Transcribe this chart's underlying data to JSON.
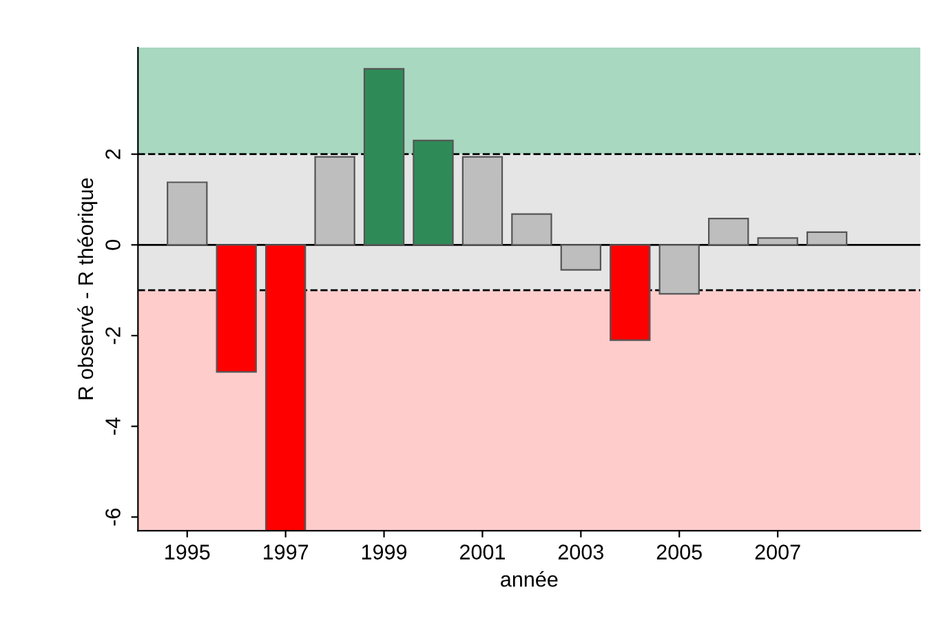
{
  "chart_data": {
    "type": "bar",
    "xlabel": "année",
    "ylabel": "R observé - R théorique",
    "x": [
      1995,
      1996,
      1997,
      1998,
      1999,
      2000,
      2001,
      2002,
      2003,
      2004,
      2005,
      2006,
      2007,
      2008
    ],
    "values": [
      1.38,
      -2.8,
      -6.3,
      1.94,
      3.88,
      2.3,
      1.94,
      0.68,
      -0.55,
      -2.1,
      -1.08,
      0.58,
      0.15,
      0.28
    ],
    "colors": [
      "#bebebe",
      "#ff0000",
      "#ff0000",
      "#bebebe",
      "#2e8b57",
      "#2e8b57",
      "#bebebe",
      "#bebebe",
      "#bebebe",
      "#ff0000",
      "#bebebe",
      "#bebebe",
      "#bebebe",
      "#bebebe"
    ],
    "xlim": [
      1994,
      2009.9
    ],
    "ylim": [
      -6.3,
      4.35
    ],
    "xticks": [
      1995,
      1997,
      1999,
      2001,
      2003,
      2005,
      2007
    ],
    "yticks": [
      -6,
      -4,
      -2,
      0,
      2
    ],
    "bands": [
      {
        "axis": "y",
        "from": 2,
        "to": 4.35,
        "color": "#a8d8c0"
      },
      {
        "axis": "y",
        "from": -1,
        "to": 2,
        "color": "#e5e5e5"
      },
      {
        "axis": "y",
        "from": -6.3,
        "to": -1,
        "color": "#ffcccc"
      }
    ],
    "ref_lines": [
      {
        "axis": "y",
        "value": 2,
        "line_style": "dashed"
      },
      {
        "axis": "y",
        "value": -1,
        "line_style": "dashed"
      },
      {
        "axis": "y",
        "value": 0,
        "line_style": "solid"
      }
    ],
    "grid": false,
    "legend": false
  }
}
